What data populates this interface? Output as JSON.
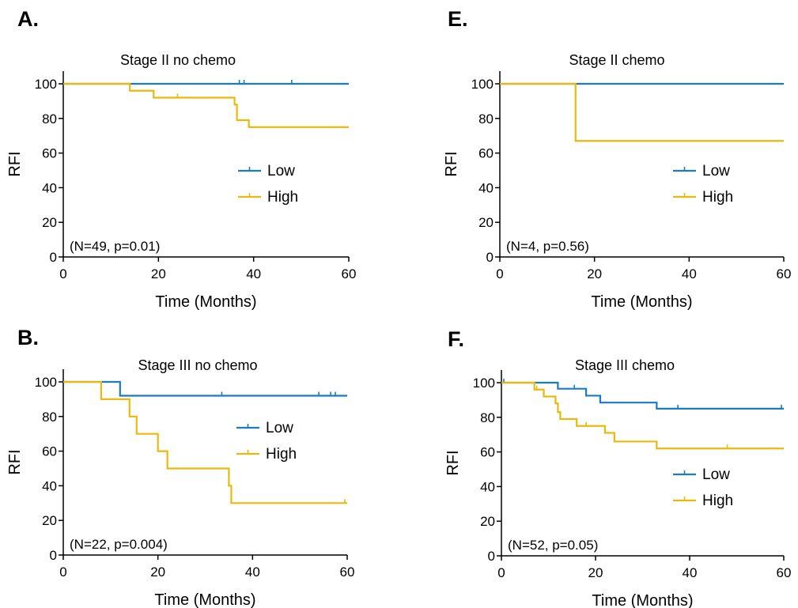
{
  "colors": {
    "low": "#1a7bbf",
    "high": "#e9b90f",
    "axis": "#000000"
  },
  "chart_data": [
    {
      "panel": "A.",
      "type": "line",
      "step": true,
      "title": "Stage II no chemo",
      "xlabel": "Time (Months)",
      "ylabel": "RFI",
      "xlim": [
        0,
        60
      ],
      "ylim": [
        0,
        100
      ],
      "xticks": [
        0,
        20,
        40,
        60
      ],
      "yticks": [
        0,
        20,
        40,
        60,
        80,
        100
      ],
      "annotation": "(N=49, p=0.01)",
      "legend_position": "center-right",
      "series": [
        {
          "name": "Low",
          "color_key": "low",
          "x": [
            0,
            60
          ],
          "y": [
            100,
            100
          ],
          "censor_x": [
            37,
            38,
            48
          ]
        },
        {
          "name": "High",
          "color_key": "high",
          "x": [
            0,
            14,
            19,
            36,
            36.5,
            39,
            60
          ],
          "y": [
            100,
            96,
            92,
            88,
            79,
            75,
            75
          ],
          "censor_x": [
            24
          ]
        }
      ]
    },
    {
      "panel": "E.",
      "type": "line",
      "step": true,
      "title": "Stage II chemo",
      "xlabel": "Time (Months)",
      "ylabel": "RFI",
      "xlim": [
        0,
        60
      ],
      "ylim": [
        0,
        100
      ],
      "xticks": [
        0,
        20,
        40,
        60
      ],
      "yticks": [
        0,
        20,
        40,
        60,
        80,
        100
      ],
      "annotation": "(N=4, p=0.56)",
      "legend_position": "center-right",
      "series": [
        {
          "name": "Low",
          "color_key": "low",
          "x": [
            0,
            60
          ],
          "y": [
            100,
            100
          ],
          "censor_x": []
        },
        {
          "name": "High",
          "color_key": "high",
          "x": [
            0,
            16,
            60
          ],
          "y": [
            100,
            67,
            67
          ],
          "censor_x": []
        }
      ]
    },
    {
      "panel": "B.",
      "type": "line",
      "step": true,
      "title": "Stage III no chemo",
      "xlabel": "Time (Months)",
      "ylabel": "RFI",
      "xlim": [
        0,
        60
      ],
      "ylim": [
        0,
        100
      ],
      "xticks": [
        0,
        20,
        40,
        60
      ],
      "yticks": [
        0,
        20,
        40,
        60,
        80,
        100
      ],
      "annotation": "(N=22, p=0.004)",
      "legend_position": "center-right",
      "series": [
        {
          "name": "Low",
          "color_key": "low",
          "x": [
            0,
            12,
            60
          ],
          "y": [
            100,
            92,
            92
          ],
          "censor_x": [
            33.5,
            54,
            56.5,
            57.5
          ]
        },
        {
          "name": "High",
          "color_key": "high",
          "x": [
            0,
            8,
            14,
            15.5,
            20,
            22,
            35,
            35.5,
            60
          ],
          "y": [
            100,
            90,
            80,
            70,
            60,
            50,
            40,
            30,
            30
          ],
          "censor_x": [
            59.5
          ]
        }
      ]
    },
    {
      "panel": "F.",
      "type": "line",
      "step": true,
      "title": "Stage III chemo",
      "xlabel": "Time (Months)",
      "ylabel": "RFI",
      "xlim": [
        0,
        60
      ],
      "ylim": [
        0,
        100
      ],
      "xticks": [
        0,
        20,
        40,
        60
      ],
      "yticks": [
        0,
        20,
        40,
        60,
        80,
        100
      ],
      "annotation": "(N=52, p=0.05)",
      "legend_position": "center-right",
      "series": [
        {
          "name": "Low",
          "color_key": "low",
          "x": [
            0,
            12,
            18,
            21,
            33,
            60
          ],
          "y": [
            100,
            96.5,
            92.5,
            88.5,
            85,
            85
          ],
          "censor_x": [
            0.5,
            15.5,
            37.5,
            59.5
          ]
        },
        {
          "name": "High",
          "color_key": "high",
          "x": [
            0,
            7,
            9,
            11.5,
            12,
            12.5,
            16,
            22,
            24,
            33,
            60
          ],
          "y": [
            100,
            96,
            92,
            88,
            83,
            79,
            75,
            71,
            66,
            62,
            62
          ],
          "censor_x": [
            7.5,
            18,
            48
          ]
        }
      ]
    }
  ]
}
